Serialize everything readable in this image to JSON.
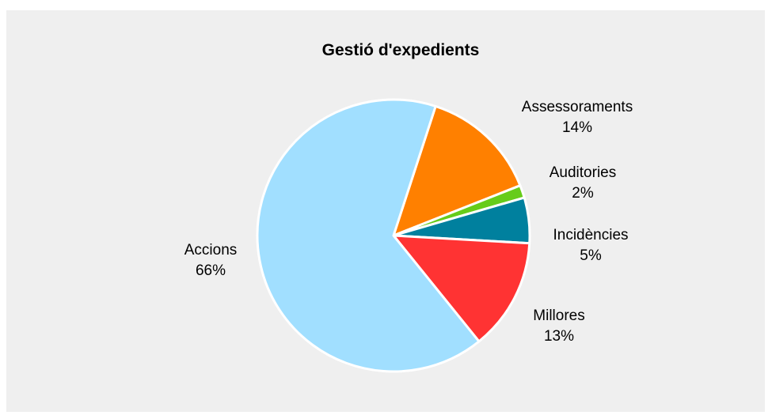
{
  "chart_data": {
    "type": "pie",
    "title": "Gestió d'expedients",
    "slices": [
      {
        "label": "Assessoraments",
        "pct_label": "14%",
        "value": 14,
        "color": "#ff8000"
      },
      {
        "label": "Auditories",
        "pct_label": "2%",
        "value": 1.5,
        "color": "#66cc1a"
      },
      {
        "label": "Incidències",
        "pct_label": "5%",
        "value": 5.4,
        "color": "#00809e"
      },
      {
        "label": "Millores",
        "pct_label": "13%",
        "value": 13.3,
        "color": "#ff3333"
      },
      {
        "label": "Accions",
        "pct_label": "66%",
        "value": 65.8,
        "color": "#a1dfff"
      }
    ],
    "start_angle_deg": 18,
    "direction": "clockwise",
    "legend": "none",
    "label_placement": "outside"
  }
}
